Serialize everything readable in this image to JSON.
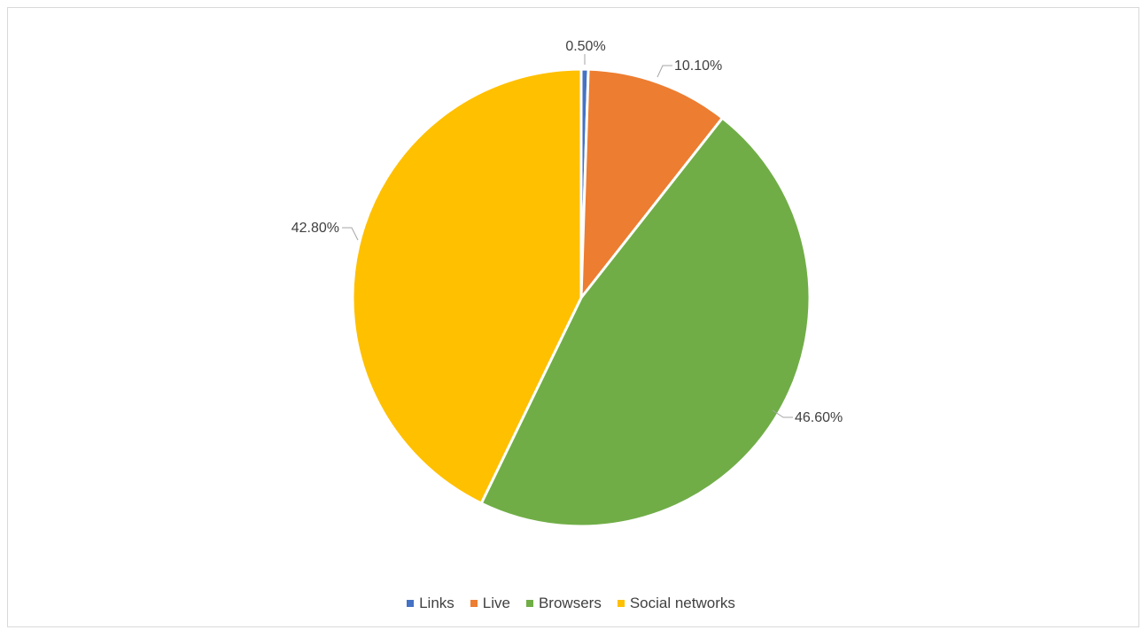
{
  "chart_data": {
    "type": "pie",
    "categories": [
      "Links",
      "Live",
      "Browsers",
      "Social networks"
    ],
    "values": [
      0.5,
      10.1,
      46.6,
      42.8
    ],
    "labels": [
      "0.50%",
      "10.10%",
      "46.60%",
      "42.80%"
    ],
    "colors": [
      "#4472c4",
      "#ed7d31",
      "#70ad47",
      "#ffc000"
    ],
    "legend_position": "bottom",
    "start_angle": "12 o'clock, clockwise"
  }
}
